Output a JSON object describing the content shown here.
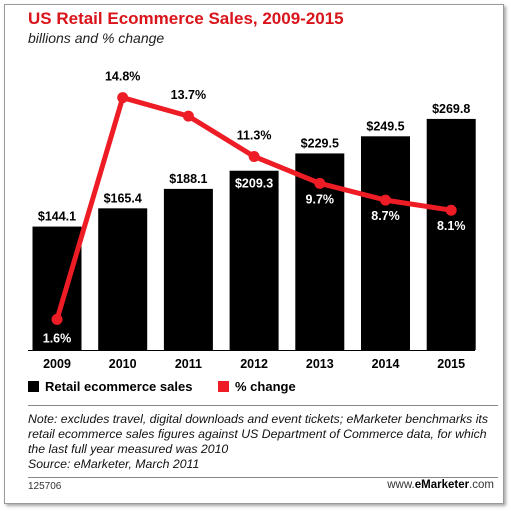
{
  "chart_data": {
    "type": "bar",
    "title": "US Retail Ecommerce Sales, 2009-2015",
    "subtitle": "billions and % change",
    "categories": [
      "2009",
      "2010",
      "2011",
      "2012",
      "2013",
      "2014",
      "2015"
    ],
    "series": [
      {
        "name": "Retail ecommerce sales",
        "type": "bar",
        "values": [
          144.1,
          165.4,
          188.1,
          209.3,
          229.5,
          249.5,
          269.8
        ],
        "labels": [
          "$144.1",
          "$165.4",
          "$188.1",
          "$209.3",
          "$229.5",
          "$249.5",
          "$269.8"
        ]
      },
      {
        "name": "% change",
        "type": "line",
        "values": [
          1.6,
          14.8,
          13.7,
          11.3,
          9.7,
          8.7,
          8.1
        ],
        "labels": [
          "1.6%",
          "14.8%",
          "13.7%",
          "11.3%",
          "9.7%",
          "8.7%",
          "8.1%"
        ]
      }
    ],
    "legend_position": "bottom-left",
    "grid": false
  },
  "note": "Note: excludes travel, digital downloads and event tickets; eMarketer benchmarks its retail ecommerce sales figures against US Department of Commerce data, for which the last full year measured was 2010",
  "source": "Source: eMarketer, March 2011",
  "footer": {
    "id": "125706",
    "site_prefix": "www.",
    "site_brand": "eMarketer",
    "site_suffix": ".com"
  },
  "colors": {
    "title": "#d9141b",
    "bars": "#000000",
    "line": "#ee1c25"
  }
}
